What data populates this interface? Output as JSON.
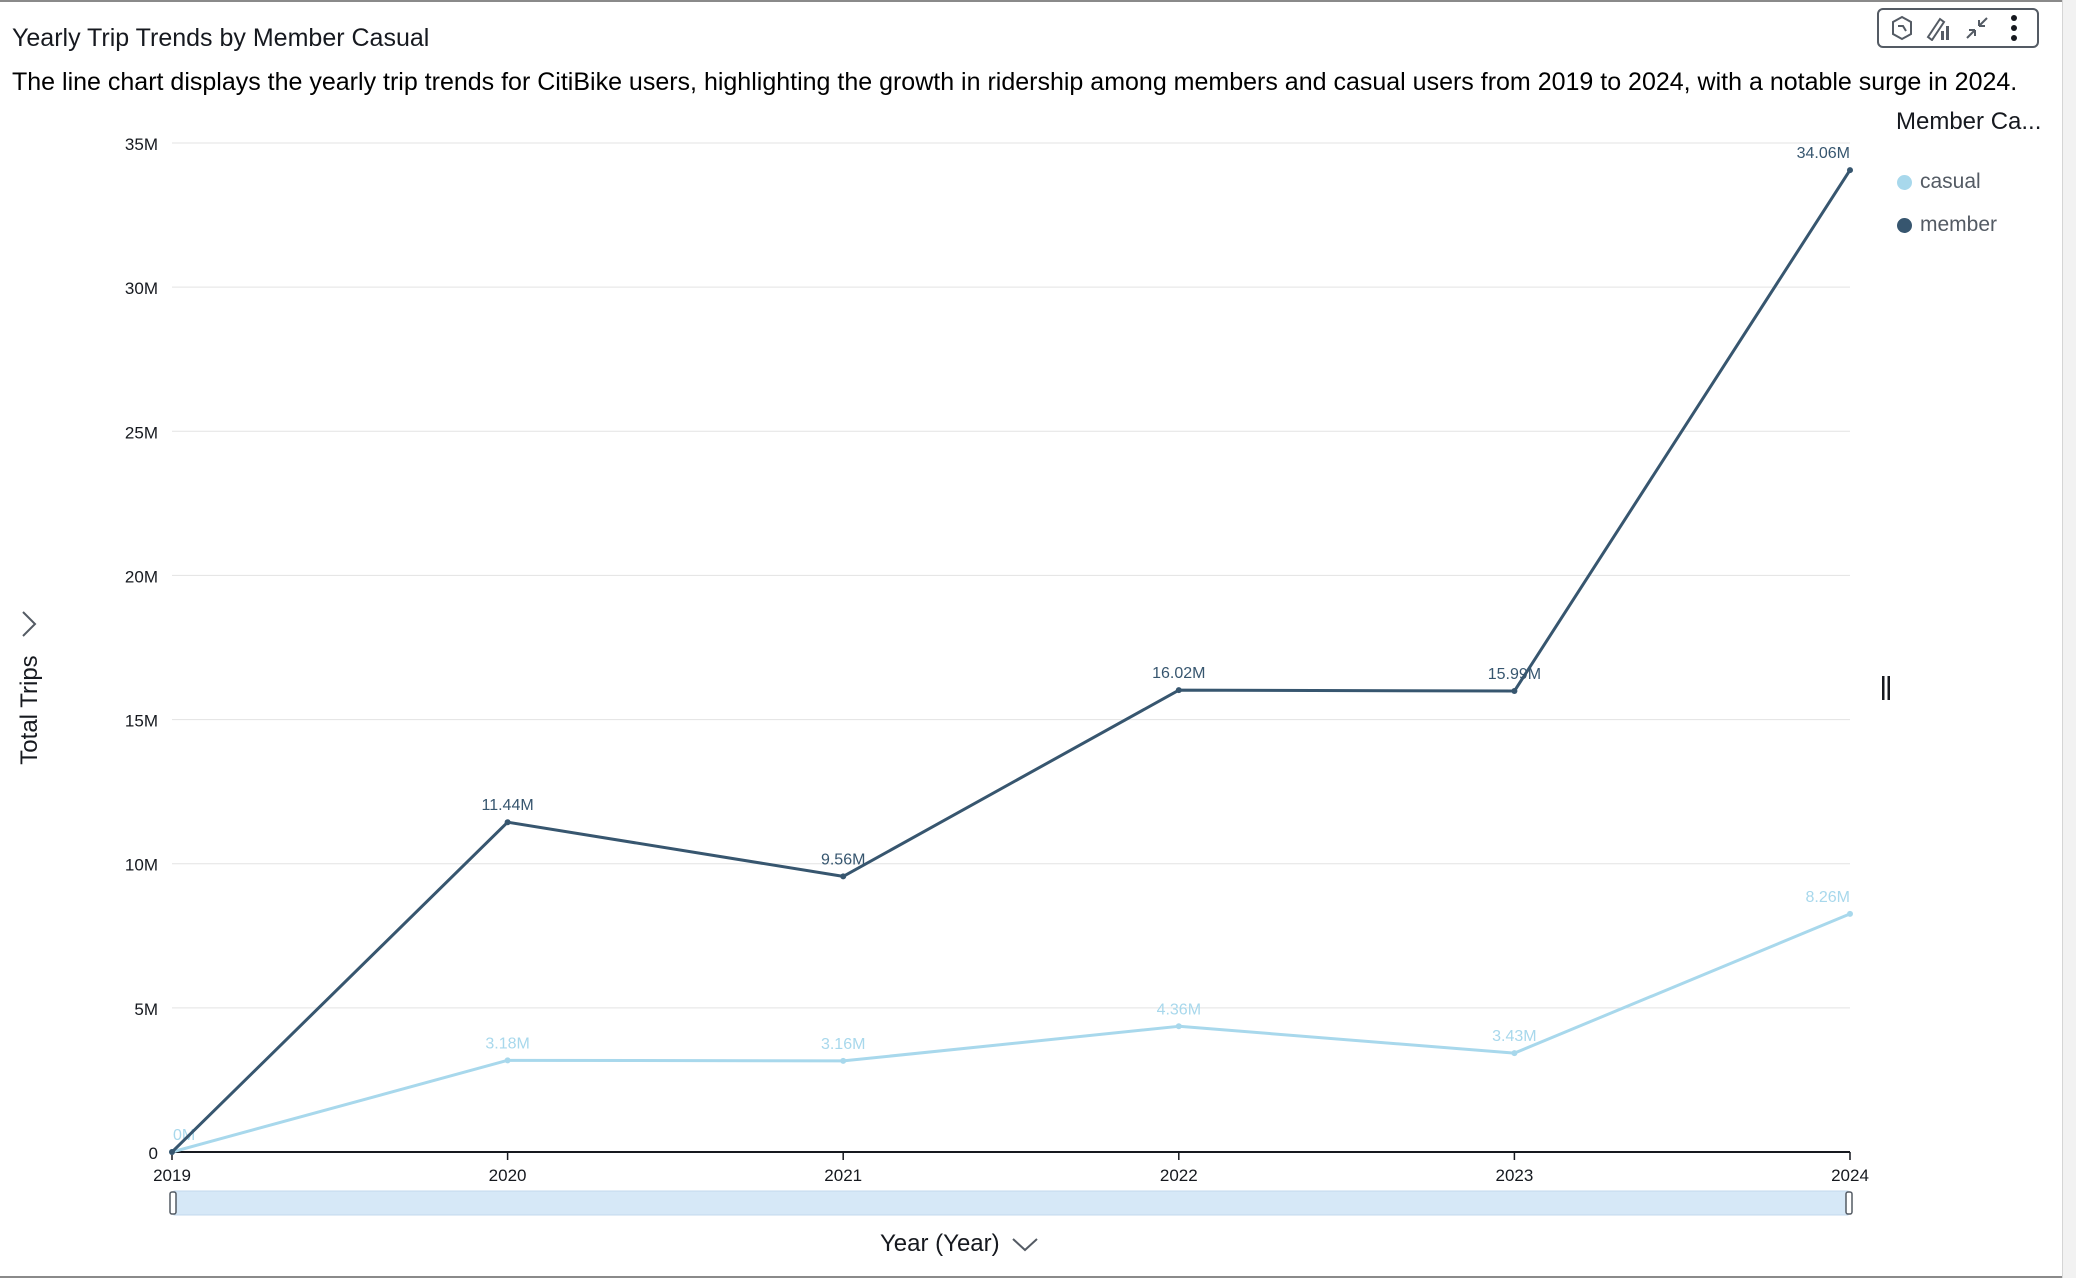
{
  "visual": {
    "title": "Yearly Trip Trends by Member Casual",
    "subtitle": "The line chart displays the yearly trip trends for CitiBike users, highlighting the growth in ridership among members and casual users from 2019 to 2024, with a notable surge in 2024."
  },
  "toolbar": {
    "icons": [
      "insight-icon",
      "format-visual-icon",
      "collapse-icon",
      "more-options-icon"
    ]
  },
  "legend": {
    "title": "Member Ca...",
    "items": [
      {
        "label": "casual",
        "color": "#a8d8ec"
      },
      {
        "label": "member",
        "color": "#37566f"
      }
    ]
  },
  "axis": {
    "ylabel": "Total Trips",
    "xlabel": "Year (Year)"
  },
  "chart_data": {
    "type": "line",
    "title": "Yearly Trip Trends by Member Casual",
    "xlabel": "Year (Year)",
    "ylabel": "Total Trips",
    "categories": [
      "2019",
      "2020",
      "2021",
      "2022",
      "2023",
      "2024"
    ],
    "ylim": [
      0,
      35000000
    ],
    "yticks": [
      {
        "value": 0,
        "label": "0"
      },
      {
        "value": 5000000,
        "label": "5M"
      },
      {
        "value": 10000000,
        "label": "10M"
      },
      {
        "value": 15000000,
        "label": "15M"
      },
      {
        "value": 20000000,
        "label": "20M"
      },
      {
        "value": 25000000,
        "label": "25M"
      },
      {
        "value": 30000000,
        "label": "30M"
      },
      {
        "value": 35000000,
        "label": "35M"
      }
    ],
    "grid": true,
    "legend_position": "top-right",
    "series": [
      {
        "name": "member",
        "color": "#37566f",
        "values": [
          0,
          11440000,
          9560000,
          16020000,
          15990000,
          34060000
        ],
        "labels": [
          "",
          "11.44M",
          "9.56M",
          "16.02M",
          "15.99M",
          "34.06M"
        ]
      },
      {
        "name": "casual",
        "color": "#a8d8ec",
        "values": [
          0,
          3180000,
          3160000,
          4360000,
          3430000,
          8260000
        ],
        "labels": [
          "0M",
          "3.18M",
          "3.16M",
          "4.36M",
          "3.43M",
          "8.26M"
        ]
      }
    ]
  }
}
